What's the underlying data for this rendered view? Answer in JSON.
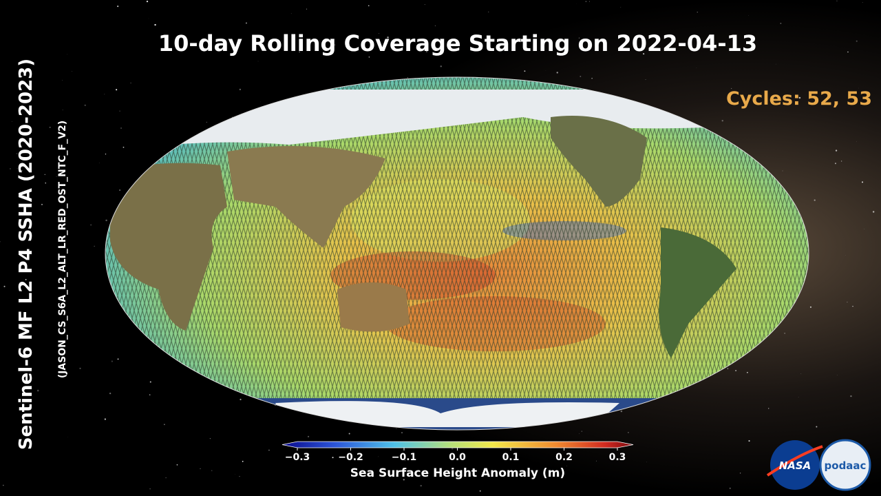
{
  "header": {
    "title": "10-day Rolling Coverage Starting on 2022-04-13",
    "cycles": "Cycles: 52, 53"
  },
  "side": {
    "title": "Sentinel-6 MF L2 P4 SSHA (2020-2023)",
    "subtitle": "(JASON_CS_S6A_L2_ALT_LR_RED_OST_NTC_F_V2)"
  },
  "colorbar": {
    "label": "Sea Surface Height Anomaly (m)",
    "lim": [
      -0.3,
      0.3
    ],
    "ticks": [
      {
        "value": -0.3,
        "label": "−0.3"
      },
      {
        "value": -0.2,
        "label": "−0.2"
      },
      {
        "value": -0.1,
        "label": "−0.1"
      },
      {
        "value": 0,
        "label": "0.0"
      },
      0.1,
      0.2,
      0.3
    ]
  },
  "logos": {
    "nasa": "NASA",
    "podaac": "podaac"
  }
}
